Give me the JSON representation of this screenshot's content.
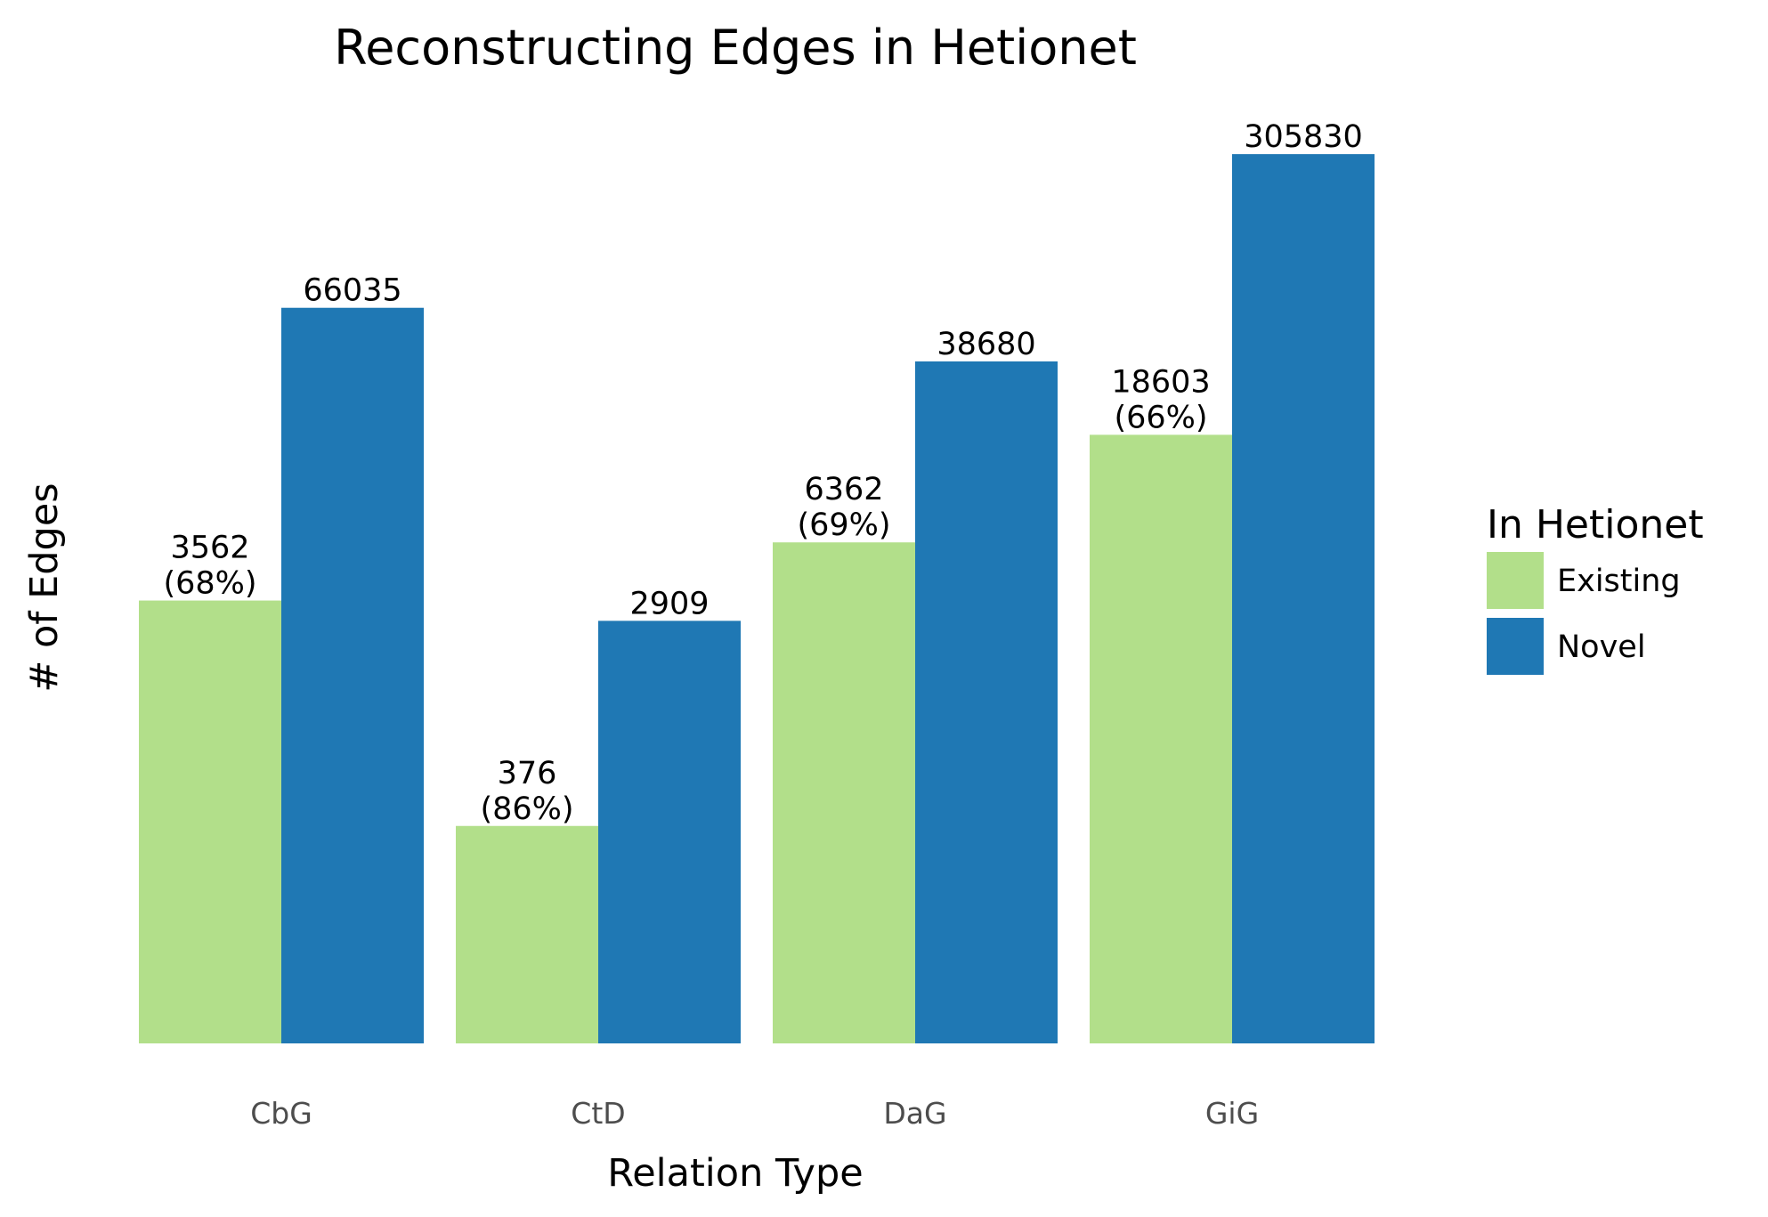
{
  "chart_data": {
    "type": "bar",
    "title": "Reconstructing Edges in Hetionet",
    "xlabel": "Relation Type",
    "ylabel": "# of Edges",
    "y_scale": "log",
    "y_axis_ticks_shown": false,
    "grid": false,
    "legend_position": "right",
    "categories": [
      "CbG",
      "CtD",
      "DaG",
      "GiG"
    ],
    "legend": {
      "title": "In Hetionet"
    },
    "series": [
      {
        "name": "Existing",
        "color": "#b2df8a",
        "values": [
          3562,
          376,
          6362,
          18603
        ],
        "labels": [
          "3562\n(68%)",
          "376\n(86%)",
          "6362\n(69%)",
          "18603\n(66%)"
        ]
      },
      {
        "name": "Novel",
        "color": "#1f78b4",
        "values": [
          66035,
          2909,
          38680,
          305830
        ],
        "labels": [
          "66035",
          "2909",
          "38680",
          "305830"
        ]
      }
    ]
  }
}
